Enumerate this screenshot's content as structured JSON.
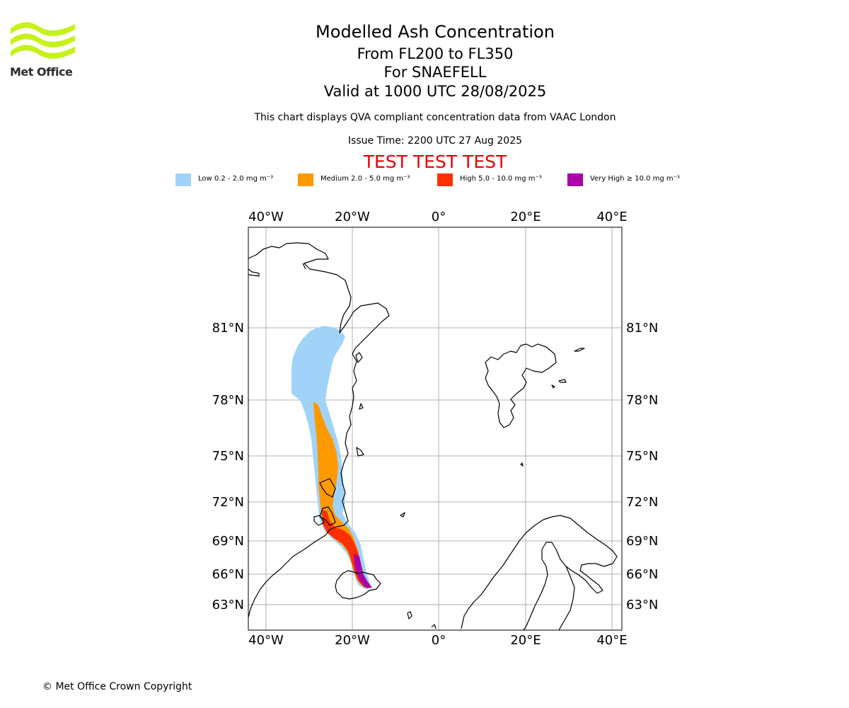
{
  "logo": {
    "name": "Met Office"
  },
  "header": {
    "title": "Modelled Ash Concentration",
    "level_range": "From FL200 to FL350",
    "volcano": "For SNAEFELL",
    "valid_time": "Valid at 1000 UTC 28/08/2025",
    "description": "This chart displays QVA compliant concentration data from VAAC London",
    "issue_time": "Issue Time: 2200 UTC 27 Aug 2025",
    "test_banner": "TEST TEST TEST",
    "test_banner_color": "#e8000b"
  },
  "legend": [
    {
      "label": "Low 0.2 - 2.0 mg m⁻³",
      "color": "#a1d3f9"
    },
    {
      "label": "Medium 2.0 - 5.0 mg m⁻³",
      "color": "#ff9900"
    },
    {
      "label": "High 5.0 - 10.0 mg m⁻³",
      "color": "#ff3000"
    },
    {
      "label": "Very High ≥ 10.0 mg m⁻³",
      "color": "#aa00aa"
    }
  ],
  "map": {
    "lon_ticks": [
      "40°W",
      "20°W",
      "0°",
      "20°E",
      "40°E"
    ],
    "lat_ticks": [
      "81°N",
      "78°N",
      "75°N",
      "72°N",
      "69°N",
      "66°N",
      "63°N"
    ],
    "grid": true,
    "gridline_color": "#b0b0b0",
    "coastline_color": "#000000"
  },
  "footer": {
    "copyright": "© Met Office Crown Copyright"
  }
}
